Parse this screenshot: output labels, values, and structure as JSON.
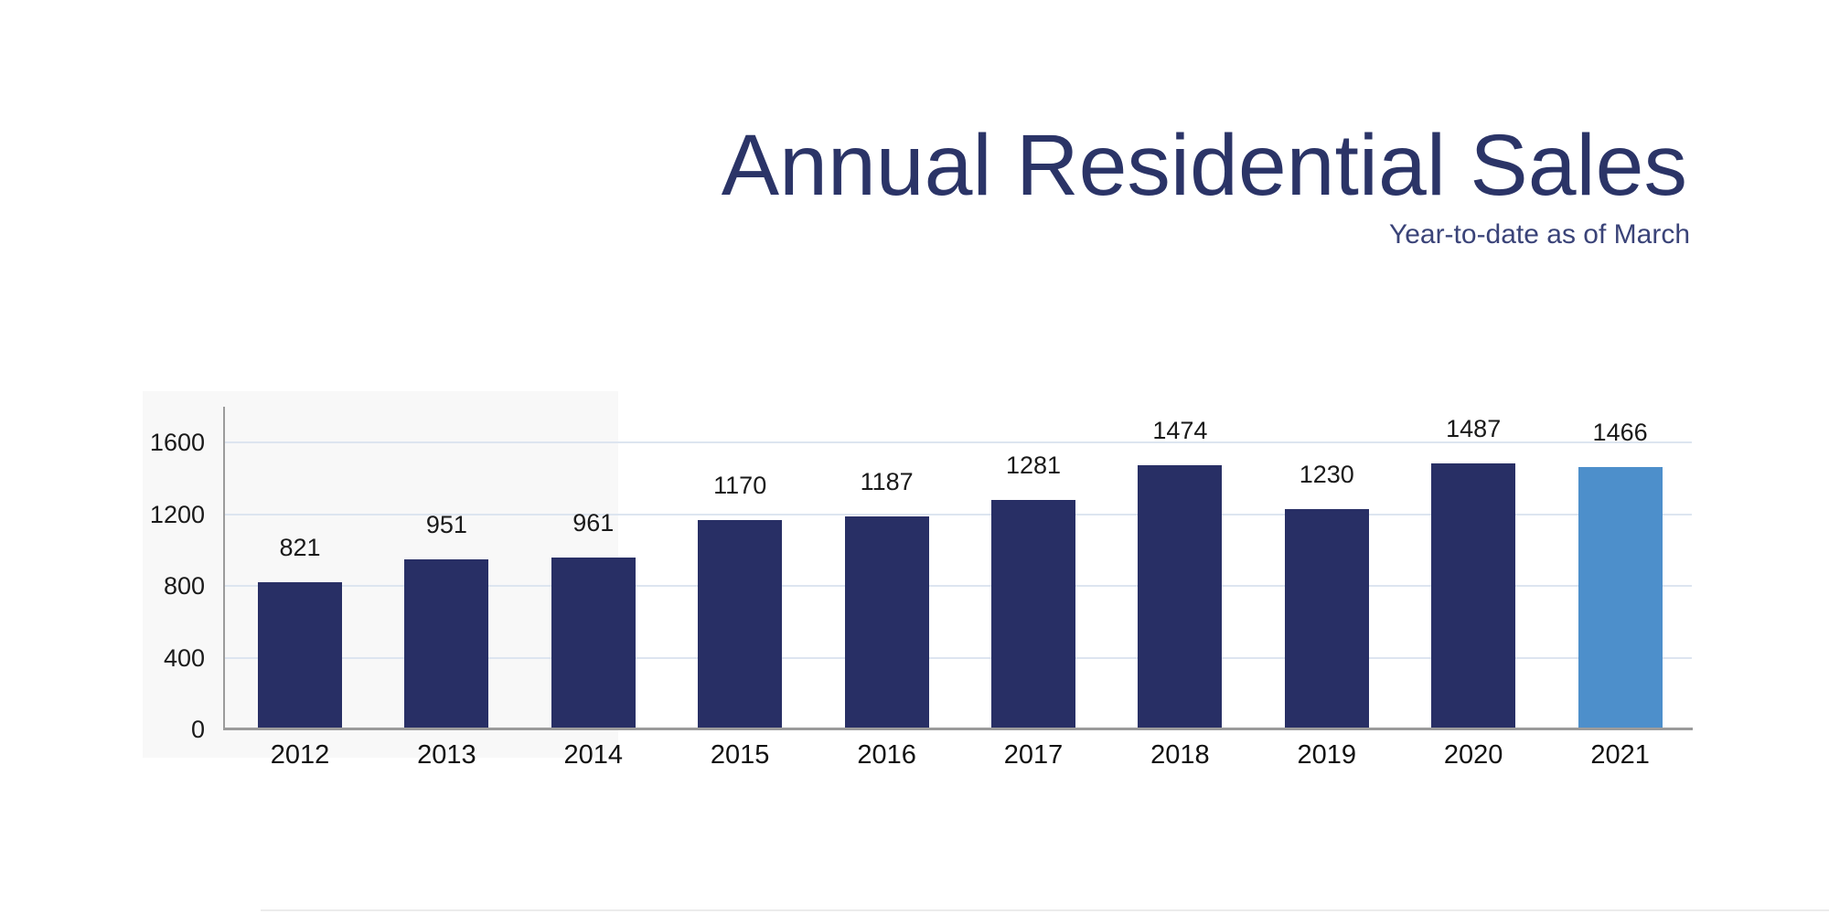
{
  "header": {
    "title": "Annual Residential Sales",
    "subtitle": "Year-to-date as of March",
    "title_color": "#2b3467",
    "subtitle_color": "#3a4378"
  },
  "chart_data": {
    "type": "bar",
    "title": "Annual Residential Sales",
    "subtitle": "Year-to-date as of March",
    "categories": [
      "2012",
      "2013",
      "2014",
      "2015",
      "2016",
      "2017",
      "2018",
      "2019",
      "2020",
      "2021"
    ],
    "values": [
      821,
      951,
      961,
      1170,
      1187,
      1281,
      1474,
      1230,
      1487,
      1466
    ],
    "value_labels_shown": true,
    "xlabel": "",
    "ylabel": "",
    "yticks": [
      0,
      400,
      800,
      1200,
      1600
    ],
    "ylim": [
      0,
      1800
    ],
    "grid": true,
    "legend": false,
    "highlight_index": 9,
    "colors": {
      "bar_default": "#282f65",
      "bar_highlight": "#4d8fcb",
      "gridline": "#dde5f0",
      "axis_line": "#9b9b9b",
      "label_text": "#1a1a1a"
    }
  }
}
